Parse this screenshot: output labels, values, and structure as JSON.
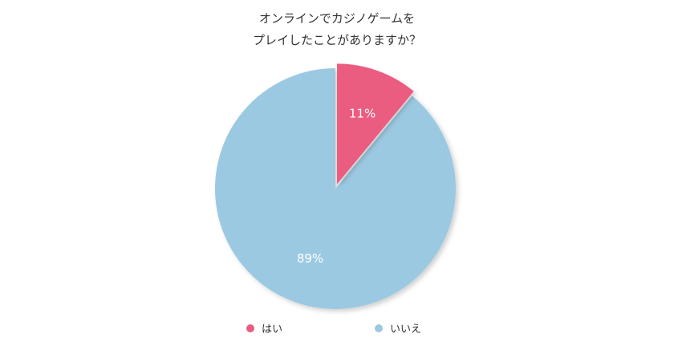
{
  "chart_data": {
    "type": "pie",
    "title_lines": [
      "オンラインでカジノゲームを",
      "プレイしたことがありますか？"
    ],
    "categories": [
      "はい",
      "いいえ"
    ],
    "values": [
      11,
      89
    ],
    "data_labels": [
      "11%",
      "89%"
    ],
    "colors": [
      "#EA5B80",
      "#9CC9E2"
    ],
    "exploded": [
      "はい"
    ],
    "legend_position": "bottom",
    "grid": false
  }
}
